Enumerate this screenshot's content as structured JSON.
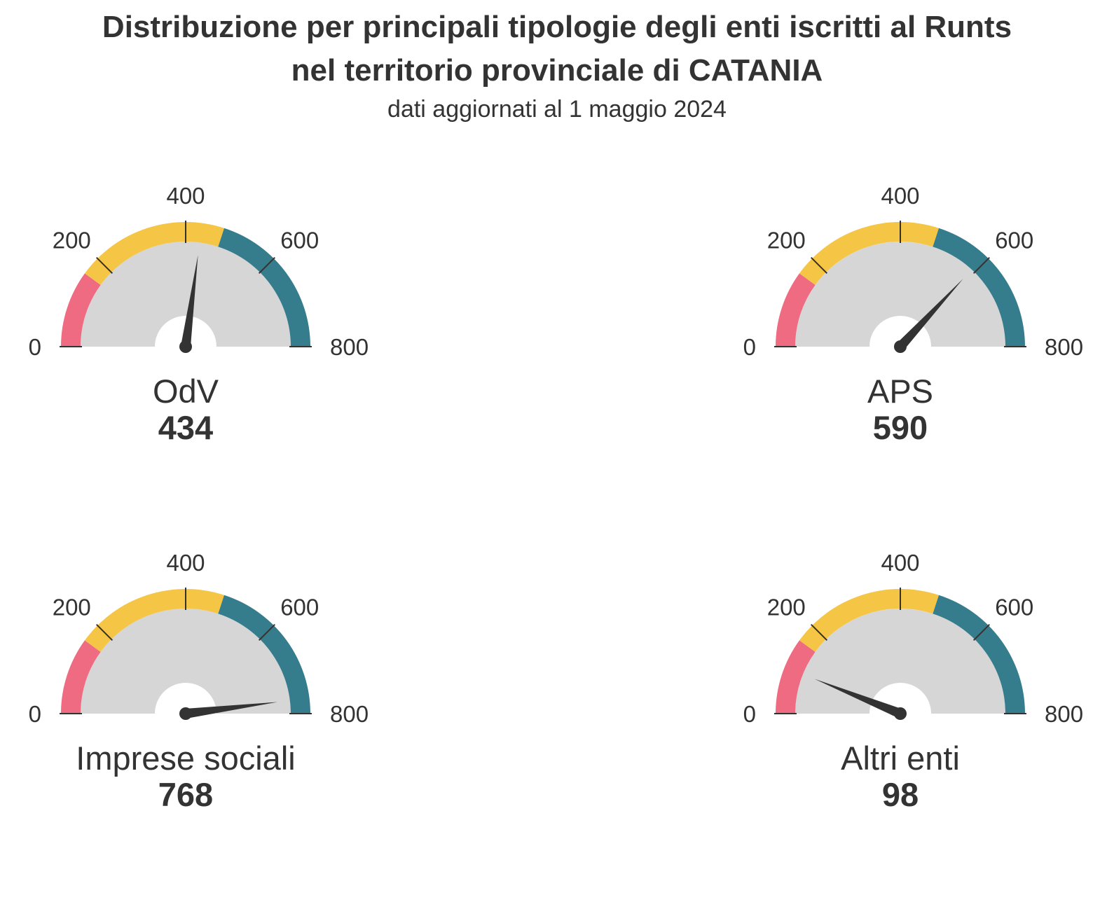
{
  "title_lines": [
    "Distribuzione per principali tipologie degli enti iscritti al Runts",
    "nel territorio provinciale di CATANIA"
  ],
  "subtitle": "dati aggiornati al 1 maggio 2024",
  "chart_data": {
    "type": "gauge",
    "scale": {
      "min": 0,
      "max": 800,
      "tick_labels": [
        "0",
        "200",
        "400",
        "600",
        "800"
      ]
    },
    "bands": [
      {
        "from": 0,
        "to": 160,
        "color": "#ee6b82"
      },
      {
        "from": 160,
        "to": 480,
        "color": "#f5c545"
      },
      {
        "from": 480,
        "to": 800,
        "color": "#357c8c"
      }
    ],
    "track_color": "#d6d6d6",
    "needle_color": "#333333",
    "gauges": [
      {
        "label": "OdV",
        "value": 434
      },
      {
        "label": "APS",
        "value": 590
      },
      {
        "label": "Imprese sociali",
        "value": 768
      },
      {
        "label": "Altri enti",
        "value": 98
      }
    ]
  }
}
